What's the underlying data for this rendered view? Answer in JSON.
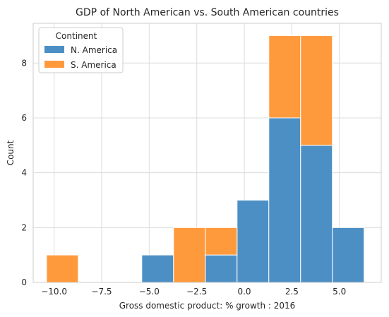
{
  "chart_data": {
    "type": "histogram",
    "stacked": true,
    "title": "GDP of North American vs. South American countries",
    "xlabel": "Gross domestic product: % growth : 2016",
    "ylabel": "Count",
    "xlim": [
      -11.1,
      7.2
    ],
    "ylim": [
      0,
      9.45
    ],
    "x_ticks": [
      -10.0,
      -7.5,
      -5.0,
      -2.5,
      0.0,
      2.5,
      5.0
    ],
    "x_tick_labels": [
      "−10.0",
      "−7.5",
      "−5.0",
      "−2.5",
      "0.0",
      "2.5",
      "5.0"
    ],
    "y_ticks": [
      0,
      2,
      4,
      6,
      8
    ],
    "y_tick_labels": [
      "0",
      "2",
      "4",
      "6",
      "8"
    ],
    "grid": true,
    "legend": {
      "title": "Continent",
      "placement": "top-left"
    },
    "bin_edges": [
      -10.4,
      -8.73,
      -7.06,
      -5.39,
      -3.72,
      -2.05,
      -0.38,
      1.29,
      2.96,
      4.63,
      6.3
    ],
    "series": [
      {
        "name": "N. America",
        "color": "#4c8fc4",
        "values": [
          0,
          0,
          0,
          1,
          0,
          1,
          3,
          6,
          5,
          2
        ]
      },
      {
        "name": "S. America",
        "color": "#ff9a3c",
        "values": [
          1,
          0,
          0,
          0,
          2,
          1,
          0,
          3,
          4,
          0
        ]
      }
    ]
  }
}
